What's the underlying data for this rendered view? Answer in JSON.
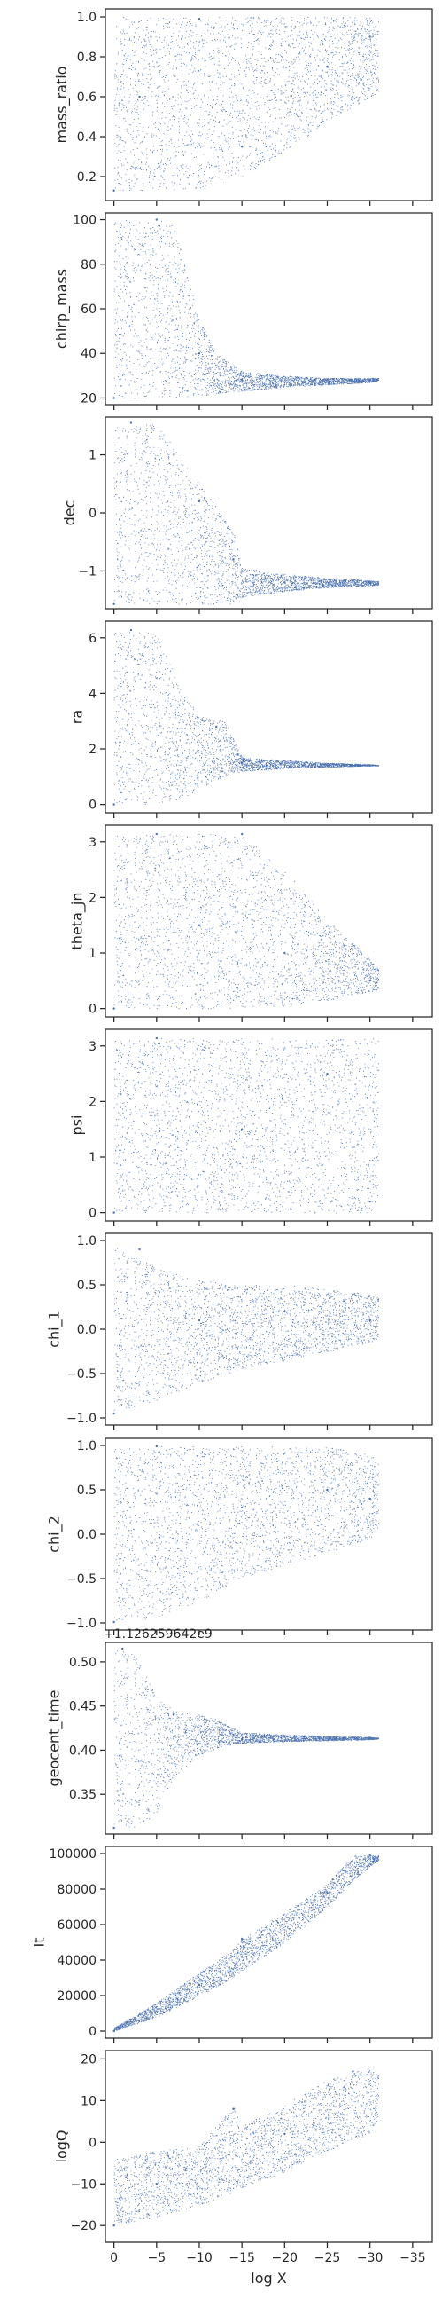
{
  "figure": {
    "xlabel": "log X",
    "x_ticks": [
      0,
      -5,
      -10,
      -15,
      -20,
      -25,
      -30,
      -35
    ],
    "x_tick_labels": [
      "0",
      "−5",
      "−10",
      "−15",
      "−20",
      "−25",
      "−30",
      "−35"
    ],
    "xlim": [
      1,
      -37.3
    ],
    "marker_color": "#4c72b0"
  },
  "chart_data": [
    {
      "type": "scatter",
      "ylabel": "mass_ratio",
      "ylim": [
        0.08,
        1.04
      ],
      "yticks": [
        0.2,
        0.4,
        0.6,
        0.8,
        1.0
      ],
      "ytick_labels": [
        "0.2",
        "0.4",
        "0.6",
        "0.8",
        "1.0"
      ],
      "x_range": [
        0,
        -31
      ],
      "envelope": {
        "x": [
          0,
          -5,
          -10,
          -15,
          -20,
          -25,
          -30,
          -31
        ],
        "upper": [
          1.0,
          1.0,
          1.0,
          1.0,
          1.0,
          1.0,
          1.0,
          1.0
        ],
        "lower": [
          0.13,
          0.13,
          0.14,
          0.2,
          0.33,
          0.47,
          0.6,
          0.62
        ]
      },
      "points": [
        [
          0,
          0.13
        ],
        [
          -3,
          0.6
        ],
        [
          -10,
          0.99
        ],
        [
          -15,
          0.35
        ],
        [
          -25,
          0.75
        ],
        [
          -30,
          0.9
        ]
      ]
    },
    {
      "type": "scatter",
      "ylabel": "chirp_mass",
      "ylim": [
        17,
        103
      ],
      "yticks": [
        20,
        40,
        60,
        80,
        100
      ],
      "ytick_labels": [
        "20",
        "40",
        "60",
        "80",
        "100"
      ],
      "x_range": [
        0,
        -31
      ],
      "envelope": {
        "x": [
          0,
          -5,
          -7,
          -10,
          -12,
          -15,
          -20,
          -25,
          -30,
          -31
        ],
        "upper": [
          100,
          100,
          98,
          55,
          40,
          32,
          30,
          29,
          29,
          29
        ],
        "lower": [
          20,
          20,
          20,
          21,
          22,
          23,
          25,
          26,
          27,
          28
        ]
      },
      "points": [
        [
          0,
          20
        ],
        [
          -5,
          100
        ],
        [
          -10,
          40
        ],
        [
          -15,
          28
        ],
        [
          -25,
          28
        ],
        [
          -30,
          28
        ]
      ]
    },
    {
      "type": "scatter",
      "ylabel": "dec",
      "ylim": [
        -1.65,
        1.65
      ],
      "yticks": [
        -1,
        0,
        1
      ],
      "ytick_labels": [
        "−1",
        "0",
        "1"
      ],
      "x_range": [
        0,
        -31
      ],
      "envelope": {
        "x": [
          0,
          -5,
          -10,
          -14,
          -15,
          -20,
          -25,
          -30,
          -31
        ],
        "upper": [
          1.5,
          1.55,
          0.5,
          -0.3,
          -0.95,
          -1.05,
          -1.12,
          -1.16,
          -1.18
        ],
        "lower": [
          -1.57,
          -1.57,
          -1.57,
          -1.57,
          -1.45,
          -1.35,
          -1.28,
          -1.25,
          -1.24
        ]
      },
      "points": [
        [
          0,
          -1.57
        ],
        [
          -2,
          1.55
        ],
        [
          -10,
          0.2
        ],
        [
          -14,
          -0.8
        ],
        [
          -20,
          -1.2
        ],
        [
          -30,
          -1.2
        ]
      ]
    },
    {
      "type": "scatter",
      "ylabel": "ra",
      "ylim": [
        -0.3,
        6.6
      ],
      "yticks": [
        0,
        2,
        4,
        6
      ],
      "ytick_labels": [
        "0",
        "2",
        "4",
        "6"
      ],
      "x_range": [
        0,
        -31
      ],
      "envelope": {
        "x": [
          0,
          -5,
          -8,
          -10,
          -13,
          -15,
          -20,
          -25,
          -30,
          -31
        ],
        "upper": [
          6.28,
          6.28,
          4.0,
          3.2,
          3.0,
          1.7,
          1.6,
          1.5,
          1.45,
          1.42
        ],
        "lower": [
          0.0,
          0.0,
          0.2,
          0.6,
          1.0,
          1.2,
          1.3,
          1.35,
          1.4,
          1.4
        ]
      },
      "points": [
        [
          0,
          0
        ],
        [
          -2,
          6.28
        ],
        [
          -12,
          2.8
        ],
        [
          -15,
          1.5
        ],
        [
          -25,
          1.4
        ],
        [
          -30,
          1.4
        ]
      ]
    },
    {
      "type": "scatter",
      "ylabel": "theta_jn",
      "ylim": [
        -0.15,
        3.3
      ],
      "yticks": [
        0,
        1,
        2,
        3
      ],
      "ytick_labels": [
        "0",
        "1",
        "2",
        "3"
      ],
      "x_range": [
        0,
        -31
      ],
      "envelope": {
        "x": [
          0,
          -5,
          -10,
          -15,
          -20,
          -25,
          -30,
          -31
        ],
        "upper": [
          3.14,
          3.14,
          3.14,
          3.14,
          2.5,
          1.6,
          0.9,
          0.7
        ],
        "lower": [
          0.0,
          0.0,
          0.0,
          0.0,
          0.05,
          0.15,
          0.3,
          0.35
        ]
      },
      "points": [
        [
          0,
          0
        ],
        [
          -5,
          3.14
        ],
        [
          -10,
          1.5
        ],
        [
          -15,
          3.14
        ],
        [
          -20,
          1.0
        ],
        [
          -30,
          0.5
        ]
      ]
    },
    {
      "type": "scatter",
      "ylabel": "psi",
      "ylim": [
        -0.15,
        3.3
      ],
      "yticks": [
        0,
        1,
        2,
        3
      ],
      "ytick_labels": [
        "0",
        "1",
        "2",
        "3"
      ],
      "x_range": [
        0,
        -31
      ],
      "envelope": {
        "x": [
          0,
          -10,
          -20,
          -30,
          -31
        ],
        "upper": [
          3.14,
          3.14,
          3.14,
          3.14,
          3.14
        ],
        "lower": [
          0.0,
          0.0,
          0.0,
          0.0,
          0.0
        ]
      },
      "points": [
        [
          0,
          0
        ],
        [
          -5,
          3.14
        ],
        [
          -15,
          1.5
        ],
        [
          -25,
          2.5
        ],
        [
          -30,
          0.2
        ]
      ]
    },
    {
      "type": "scatter",
      "ylabel": "chi_1",
      "ylim": [
        -1.08,
        1.08
      ],
      "yticks": [
        -1.0,
        -0.5,
        0.0,
        0.5,
        1.0
      ],
      "ytick_labels": [
        "−1.0",
        "−0.5",
        "0.0",
        "0.5",
        "1.0"
      ],
      "x_range": [
        0,
        -31
      ],
      "envelope": {
        "x": [
          0,
          -5,
          -10,
          -15,
          -20,
          -25,
          -30,
          -31
        ],
        "upper": [
          0.95,
          0.7,
          0.55,
          0.5,
          0.5,
          0.45,
          0.4,
          0.35
        ],
        "lower": [
          -0.95,
          -0.8,
          -0.6,
          -0.45,
          -0.35,
          -0.25,
          -0.15,
          -0.1
        ]
      },
      "points": [
        [
          0,
          -0.95
        ],
        [
          -3,
          0.9
        ],
        [
          -10,
          0.1
        ],
        [
          -20,
          0.2
        ],
        [
          -30,
          0.1
        ]
      ]
    },
    {
      "type": "scatter",
      "ylabel": "chi_2",
      "ylim": [
        -1.08,
        1.08
      ],
      "yticks": [
        -1.0,
        -0.5,
        0.0,
        0.5,
        1.0
      ],
      "ytick_labels": [
        "−1.0",
        "−0.5",
        "0.0",
        "0.5",
        "1.0"
      ],
      "x_range": [
        0,
        -31
      ],
      "envelope": {
        "x": [
          0,
          -5,
          -10,
          -15,
          -20,
          -25,
          -30,
          -31
        ],
        "upper": [
          0.99,
          0.99,
          0.99,
          0.99,
          0.99,
          0.99,
          0.9,
          0.8
        ],
        "lower": [
          -0.99,
          -0.95,
          -0.75,
          -0.5,
          -0.35,
          -0.2,
          -0.05,
          0.0
        ]
      },
      "points": [
        [
          0,
          -0.99
        ],
        [
          -5,
          0.99
        ],
        [
          -15,
          0.3
        ],
        [
          -25,
          0.5
        ],
        [
          -30,
          0.4
        ]
      ]
    },
    {
      "type": "scatter",
      "ylabel": "geocent_time",
      "ylim": [
        0.305,
        0.522
      ],
      "yticks": [
        0.35,
        0.4,
        0.45,
        0.5
      ],
      "ytick_labels": [
        "0.35",
        "0.40",
        "0.45",
        "0.50"
      ],
      "offset_text": "+1.126259642e9",
      "x_range": [
        0,
        -31
      ],
      "envelope": {
        "x": [
          0,
          -2,
          -3,
          -5,
          -7,
          -10,
          -12,
          -13,
          -15,
          -20,
          -25,
          -30,
          -31
        ],
        "upper": [
          0.515,
          0.515,
          0.5,
          0.46,
          0.445,
          0.44,
          0.435,
          0.43,
          0.42,
          0.418,
          0.416,
          0.415,
          0.414
        ],
        "lower": [
          0.312,
          0.312,
          0.312,
          0.33,
          0.37,
          0.395,
          0.402,
          0.405,
          0.408,
          0.41,
          0.411,
          0.412,
          0.413
        ]
      },
      "points": [
        [
          0,
          0.312
        ],
        [
          -1,
          0.515
        ],
        [
          -7,
          0.44
        ],
        [
          -15,
          0.412
        ],
        [
          -30,
          0.414
        ]
      ]
    },
    {
      "type": "scatter",
      "ylabel": "It",
      "ylim": [
        -4000,
        104000
      ],
      "yticks": [
        0,
        20000,
        40000,
        60000,
        80000,
        100000
      ],
      "ytick_labels": [
        "0",
        "20000",
        "40000",
        "60000",
        "80000",
        "100000"
      ],
      "x_range": [
        0,
        -31
      ],
      "envelope": {
        "x": [
          0,
          -5,
          -10,
          -14,
          -15,
          -20,
          -25,
          -28,
          -30,
          -31
        ],
        "upper": [
          2000,
          16000,
          33000,
          46000,
          52000,
          67000,
          83000,
          99000,
          99000,
          99000
        ],
        "lower": [
          0,
          8000,
          20000,
          30000,
          34000,
          50000,
          70000,
          85000,
          93000,
          96000
        ]
      },
      "points": [
        [
          0,
          0
        ],
        [
          -10,
          26000
        ],
        [
          -15,
          52000
        ],
        [
          -25,
          78000
        ],
        [
          -30,
          99000
        ]
      ]
    },
    {
      "type": "scatter",
      "ylabel": "logQ",
      "ylim": [
        -24,
        22
      ],
      "yticks": [
        -20,
        -10,
        0,
        10,
        20
      ],
      "ytick_labels": [
        "−20",
        "−10",
        "0",
        "10",
        "20"
      ],
      "x_range": [
        0,
        -31
      ],
      "envelope": {
        "x": [
          0,
          -5,
          -10,
          -14,
          -15,
          -20,
          -25,
          -30,
          -31
        ],
        "upper": [
          -4,
          -2,
          -1,
          9,
          4,
          9,
          15,
          18,
          16
        ],
        "lower": [
          -20,
          -18,
          -15,
          -12,
          -11,
          -7,
          -2,
          2,
          6
        ]
      },
      "points": [
        [
          0,
          -20
        ],
        [
          -5,
          -10
        ],
        [
          -14,
          8
        ],
        [
          -20,
          2
        ],
        [
          -28,
          17
        ]
      ]
    }
  ]
}
